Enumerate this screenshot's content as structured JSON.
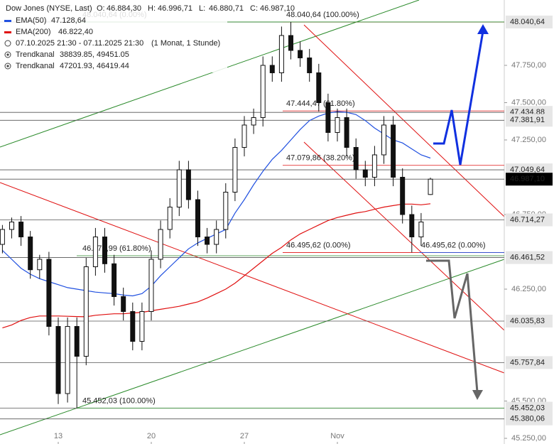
{
  "chart_data": {
    "type": "candlestick",
    "title": "Dow Jones (NYSE, Last)",
    "stats": [
      {
        "name": "O:",
        "value": 46884.3,
        "label": "46.884,30"
      },
      {
        "name": "H:",
        "value": 46996.71,
        "label": "46.996,71"
      },
      {
        "name": "L:",
        "value": 46880.71,
        "label": "46.880,71"
      },
      {
        "name": "C:",
        "value": 46987.1,
        "label": "46.987,10"
      }
    ],
    "period": "07.10.2025 21:30 - 07.11.2025 21:30",
    "period_note": "(1 Monat, 1 Stunde)",
    "channels": [
      {
        "name": "Trendkanal",
        "label": "38839.85, 49451.05"
      },
      {
        "name": "Trendkanal",
        "label": "47201.93, 46419.44"
      }
    ],
    "categories": [
      null,
      null,
      null,
      null,
      null,
      null,
      "13",
      null,
      null,
      null,
      null,
      null,
      null,
      null,
      null,
      null,
      "20",
      null,
      null,
      null,
      null,
      null,
      null,
      null,
      null,
      null,
      "27",
      null,
      null,
      null,
      null,
      null,
      null,
      null,
      null,
      null,
      "Nov",
      null,
      null,
      null,
      null,
      null,
      null,
      null,
      null,
      null,
      null
    ],
    "open": [
      46550,
      46650,
      46700,
      46600,
      46380,
      46450,
      46000,
      45550,
      46000,
      45800,
      46400,
      46600,
      46420,
      46200,
      46100,
      45900,
      46100,
      46450,
      46650,
      46800,
      47050,
      46850,
      46600,
      46550,
      46650,
      46900,
      47200,
      47350,
      47400,
      47750,
      47700,
      47950,
      47850,
      47800,
      47700,
      47500,
      47300,
      47400,
      47200,
      47050,
      47000,
      47150,
      47350,
      47000,
      46750,
      46600,
      46884.3
    ],
    "high": [
      46680,
      46730,
      46740,
      46640,
      46480,
      46500,
      46060,
      46060,
      46060,
      46460,
      46660,
      46660,
      46480,
      46260,
      46160,
      46160,
      46510,
      46710,
      46860,
      47110,
      47110,
      46910,
      46660,
      46710,
      46960,
      47260,
      47410,
      47460,
      47810,
      47810,
      48010,
      48040.64,
      47910,
      47860,
      47760,
      47560,
      47460,
      47460,
      47260,
      47110,
      47210,
      47410,
      47410,
      47060,
      46810,
      46760,
      46996.71
    ],
    "low": [
      46490,
      46590,
      46540,
      46320,
      46320,
      45940,
      45480,
      45490,
      45452.03,
      45740,
      46340,
      46360,
      46140,
      46040,
      45840,
      45840,
      46040,
      46390,
      46590,
      46740,
      46790,
      46540,
      46490,
      46490,
      46590,
      46840,
      47140,
      47290,
      47340,
      47640,
      47640,
      47790,
      47740,
      47640,
      47440,
      47240,
      47240,
      47140,
      46990,
      46940,
      46940,
      47090,
      46940,
      46690,
      46495.62,
      46540,
      46880.71
    ],
    "close": [
      46650,
      46700,
      46600,
      46380,
      46450,
      46000,
      45550,
      46000,
      45800,
      46400,
      46600,
      46420,
      46200,
      46100,
      45900,
      46100,
      46450,
      46650,
      46800,
      47050,
      46850,
      46600,
      46550,
      46650,
      46900,
      47200,
      47350,
      47400,
      47750,
      47700,
      47950,
      47850,
      47800,
      47700,
      47500,
      47300,
      47400,
      47200,
      47050,
      47000,
      47150,
      47350,
      47000,
      46750,
      46600,
      46700,
      46987.1
    ],
    "up_color": "#111111",
    "down_color": "#111111",
    "lines": [
      {
        "name": "EMA(50)",
        "label": "47.128,64",
        "color": "#2050e0",
        "values": [
          46510,
          46450,
          46390,
          46350,
          46320,
          46300,
          46280,
          46260,
          46250,
          46240,
          46230,
          46225,
          46220,
          46210,
          46205,
          46220,
          46270,
          46340,
          46400,
          46460,
          46520,
          46560,
          46590,
          46620,
          46650,
          46760,
          46850,
          46950,
          47040,
          47120,
          47180,
          47250,
          47320,
          47380,
          47410,
          47430,
          47440,
          47435,
          47420,
          47380,
          47330,
          47290,
          47250,
          47230,
          47190,
          47150,
          47128.64
        ]
      },
      {
        "name": "EMA(200)",
        "label": "46.822,40",
        "color": "#e01010",
        "values": [
          45990,
          46010,
          46040,
          46060,
          46070,
          46070,
          46070,
          46068,
          46066,
          46065,
          46075,
          46080,
          46085,
          46085,
          46090,
          46095,
          46105,
          46115,
          46125,
          46135,
          46150,
          46165,
          46190,
          46220,
          46250,
          46290,
          46340,
          46390,
          46440,
          46490,
          46530,
          46580,
          46620,
          46650,
          46680,
          46710,
          46730,
          46745,
          46760,
          46770,
          46785,
          46800,
          46810,
          46820,
          46820,
          46815,
          46822.4
        ]
      }
    ],
    "ylim": [
      45212,
      48188
    ],
    "yticks": [
      {
        "value": 47750,
        "label": "47.750,00"
      },
      {
        "value": 47500,
        "label": "47.500,00"
      },
      {
        "value": 47250,
        "label": "47.250,00"
      },
      {
        "value": 46750,
        "label": "46.750,00"
      },
      {
        "value": 46250,
        "label": "46.250,00"
      },
      {
        "value": 45500,
        "label": "45.500,00"
      },
      {
        "value": 45250,
        "label": "45.250,00"
      }
    ],
    "price_tags": [
      {
        "value": 48040.64,
        "label": "48.040,64",
        "background": "#e6e6e6",
        "color": "#222"
      },
      {
        "value": 47434.88,
        "label": "47.434,88",
        "background": "#e6e6e6",
        "color": "#222"
      },
      {
        "value": 47381.91,
        "label": "47.381,91",
        "background": "#e6e6e6",
        "color": "#222"
      },
      {
        "value": 47049.64,
        "label": "47.049,64",
        "background": "#e6e6e6",
        "color": "#222"
      },
      {
        "value": 46987.1,
        "label": "46.987,10",
        "background": "#000000",
        "color": "#fff"
      },
      {
        "value": 46714.27,
        "label": "46.714,27",
        "background": "#e6e6e6",
        "color": "#222"
      },
      {
        "value": 46461.52,
        "label": "46.461,52",
        "background": "#e6e6e6",
        "color": "#222"
      },
      {
        "value": 46035.83,
        "label": "46.035,83",
        "background": "#e6e6e6",
        "color": "#222"
      },
      {
        "value": 45757.84,
        "label": "45.757,84",
        "background": "#e6e6e6",
        "color": "#222"
      },
      {
        "value": 45452.03,
        "label": "45.452,03",
        "background": "#e6e6e6",
        "color": "#222"
      },
      {
        "value": 45380.06,
        "label": "45.380,06",
        "background": "#e6e6e6",
        "color": "#222"
      }
    ],
    "fib_levels": [
      {
        "value": 48040.64,
        "label": "48.040,64 (100.00%)",
        "color": "#e01010"
      },
      {
        "value": 47444.47,
        "label": "47.444,47 (61.80%)",
        "color": "#e01010"
      },
      {
        "value": 47079.86,
        "label": "47.079,86 (38.20%)",
        "color": "#e01010"
      },
      {
        "value": 46495.62,
        "label": "46.495,62 (0.00%)",
        "color": "#e01010"
      },
      {
        "value": 46495.62,
        "label": "46.495,62 (0.00%)",
        "color": "#2050e0"
      },
      {
        "value": 46473.99,
        "label": "46.473,99 (61.80%)",
        "color": "#2a8a2a"
      },
      {
        "value": 45452.03,
        "label": "45.452,03 (100.00%)",
        "color": "#2a8a2a"
      },
      {
        "value": 48040.64,
        "label": "48.040,64 (0.00%)",
        "color": "#2a8a2a"
      }
    ]
  }
}
